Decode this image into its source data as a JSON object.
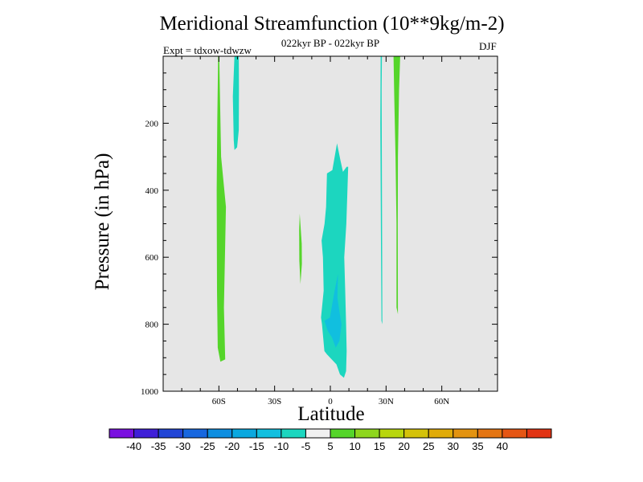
{
  "chart_data": {
    "type": "heatmap",
    "title": "Meridional Streamfunction (10**9kg/m-2)",
    "subtitle": "022kyr BP - 022kyr BP",
    "experiment": "Expt = tdxow-tdwzw",
    "season": "DJF",
    "xlabel": "Latitude",
    "ylabel": "Pressure (in hPa)",
    "xlim": [
      -90,
      90
    ],
    "ylim": [
      0,
      1000
    ],
    "y_inverted": true,
    "x_ticks": [
      {
        "value": -60,
        "label": "60S"
      },
      {
        "value": -30,
        "label": "30S"
      },
      {
        "value": 0,
        "label": "0"
      },
      {
        "value": 30,
        "label": "30N"
      },
      {
        "value": 60,
        "label": "60N"
      }
    ],
    "y_ticks": [
      {
        "value": 200,
        "label": "200"
      },
      {
        "value": 400,
        "label": "400"
      },
      {
        "value": 600,
        "label": "600"
      },
      {
        "value": 800,
        "label": "800"
      },
      {
        "value": 1000,
        "label": "1000"
      }
    ],
    "background_color": "#e6e6e6",
    "regions": [
      {
        "name": "positive-band-60s",
        "range": "5 to 10",
        "color": "#55d52a",
        "points": [
          [
            -60.4,
            0
          ],
          [
            -59.8,
            0
          ],
          [
            -59.4,
            120
          ],
          [
            -58.8,
            300
          ],
          [
            -56.2,
            450
          ],
          [
            -57.3,
            750
          ],
          [
            -56.6,
            905
          ],
          [
            -59.2,
            912
          ],
          [
            -60.6,
            870
          ],
          [
            -61.0,
            700
          ],
          [
            -61.2,
            400
          ],
          [
            -60.9,
            200
          ]
        ]
      },
      {
        "name": "negative-lobe-50s",
        "range": "-10 to -5",
        "color": "#1cd6bf",
        "points": [
          [
            -50.9,
            0
          ],
          [
            -49.3,
            0
          ],
          [
            -49.2,
            100
          ],
          [
            -49.3,
            220
          ],
          [
            -50.2,
            272
          ],
          [
            -51.6,
            280
          ],
          [
            -52.0,
            250
          ],
          [
            -52.5,
            120
          ],
          [
            -51.6,
            0
          ]
        ]
      },
      {
        "name": "positive-sliver-15s",
        "range": "5 to 10",
        "color": "#55d52a",
        "points": [
          [
            -16.5,
            470
          ],
          [
            -15.4,
            560
          ],
          [
            -15.3,
            620
          ],
          [
            -16.1,
            680
          ],
          [
            -16.7,
            610
          ],
          [
            -16.8,
            520
          ]
        ]
      },
      {
        "name": "negative-cell-equator",
        "range": "-10 to -5",
        "color": "#1cd6bf",
        "points": [
          [
            -1.8,
            350
          ],
          [
            1.1,
            340
          ],
          [
            3.6,
            260
          ],
          [
            5.4,
            310
          ],
          [
            6.8,
            345
          ],
          [
            8.8,
            330
          ],
          [
            9.6,
            330
          ],
          [
            9.1,
            420
          ],
          [
            8.6,
            500
          ],
          [
            7.5,
            600
          ],
          [
            8.0,
            700
          ],
          [
            8.5,
            800
          ],
          [
            8.8,
            880
          ],
          [
            8.5,
            940
          ],
          [
            7.3,
            960
          ],
          [
            5.2,
            950
          ],
          [
            3.3,
            920
          ],
          [
            -1.8,
            890
          ],
          [
            -3.2,
            880
          ],
          [
            -4.5,
            800
          ],
          [
            -5.0,
            780
          ],
          [
            -3.6,
            700
          ],
          [
            -4.0,
            600
          ],
          [
            -4.7,
            550
          ],
          [
            -3.1,
            500
          ],
          [
            -2.3,
            450
          ]
        ]
      },
      {
        "name": "negative-core-equator",
        "range": "-15 to -10",
        "color": "#11bfdf",
        "points": [
          [
            -0.2,
            780
          ],
          [
            2.3,
            700
          ],
          [
            4.1,
            650
          ],
          [
            3.8,
            720
          ],
          [
            4.8,
            760
          ],
          [
            6.0,
            800
          ],
          [
            4.9,
            850
          ],
          [
            2.9,
            870
          ],
          [
            0.9,
            840
          ],
          [
            -1.4,
            820
          ],
          [
            -3.2,
            790
          ]
        ]
      },
      {
        "name": "negative-strip-28n",
        "range": "-10 to -5",
        "color": "#1cd6bf",
        "points": [
          [
            27.1,
            0
          ],
          [
            27.8,
            0
          ],
          [
            27.6,
            100
          ],
          [
            27.9,
            600
          ],
          [
            28.0,
            800
          ],
          [
            27.5,
            790
          ],
          [
            27.3,
            600
          ],
          [
            26.9,
            200
          ]
        ]
      },
      {
        "name": "positive-band-36n",
        "range": "5 to 10",
        "color": "#55d52a",
        "points": [
          [
            34.0,
            0
          ],
          [
            37.6,
            0
          ],
          [
            37.0,
            100
          ],
          [
            36.4,
            300
          ],
          [
            36.3,
            500
          ],
          [
            36.4,
            770
          ],
          [
            35.6,
            750
          ],
          [
            35.6,
            500
          ],
          [
            35.1,
            300
          ],
          [
            34.4,
            120
          ]
        ]
      }
    ],
    "colorbar": {
      "colors": [
        "#7a10e0",
        "#3f1fd8",
        "#2145d6",
        "#1767df",
        "#0d8ee0",
        "#0aa8df",
        "#11bfdf",
        "#1cd6bf",
        "#f0f0f0",
        "#55d52a",
        "#8ed61d",
        "#b8d60d",
        "#d4c20a",
        "#e0ab09",
        "#e39310",
        "#e47512",
        "#e55614",
        "#e23414"
      ],
      "labels": [
        "-40",
        "-35",
        "-30",
        "-25",
        "-20",
        "-15",
        "-10",
        "-5",
        "5",
        "10",
        "15",
        "20",
        "25",
        "30",
        "35",
        "40"
      ]
    }
  }
}
